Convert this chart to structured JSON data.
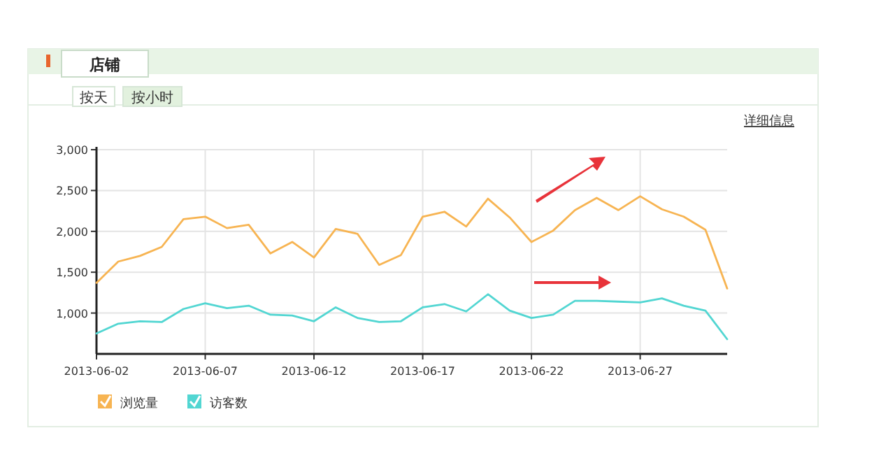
{
  "chart_data": {
    "type": "line",
    "title": "店铺",
    "annotations": [
      "按天",
      "按小时",
      "详细信息"
    ],
    "x": [
      "2013-06-02",
      "2013-06-03",
      "2013-06-04",
      "2013-06-05",
      "2013-06-06",
      "2013-06-07",
      "2013-06-08",
      "2013-06-09",
      "2013-06-10",
      "2013-06-11",
      "2013-06-12",
      "2013-06-13",
      "2013-06-14",
      "2013-06-15",
      "2013-06-16",
      "2013-06-17",
      "2013-06-18",
      "2013-06-19",
      "2013-06-20",
      "2013-06-21",
      "2013-06-22",
      "2013-06-23",
      "2013-06-24",
      "2013-06-25",
      "2013-06-26",
      "2013-06-27",
      "2013-06-28",
      "2013-06-29",
      "2013-06-30",
      "2013-07-01"
    ],
    "series": [
      {
        "name": "浏览量",
        "color": "#f7b452",
        "values": [
          1370,
          1630,
          1700,
          1810,
          2150,
          2180,
          2040,
          2080,
          1730,
          1870,
          1680,
          2030,
          1970,
          1590,
          1710,
          2180,
          2240,
          2060,
          2400,
          2170,
          1870,
          2010,
          2260,
          2410,
          2260,
          2430,
          2270,
          2180,
          2020,
          1300
        ]
      },
      {
        "name": "访客数",
        "color": "#52d6d2",
        "values": [
          750,
          870,
          900,
          890,
          1050,
          1120,
          1060,
          1090,
          980,
          970,
          900,
          1070,
          940,
          890,
          900,
          1070,
          1110,
          1020,
          1230,
          1030,
          940,
          980,
          1150,
          1150,
          1140,
          1130,
          1180,
          1090,
          1030,
          680
        ]
      }
    ],
    "xlim": [
      "2013-06-02",
      "2013-07-01"
    ],
    "xticks": [
      "2013-06-02",
      "2013-06-07",
      "2013-06-12",
      "2013-06-17",
      "2013-06-22",
      "2013-06-27"
    ],
    "ylim": [
      500,
      3000
    ],
    "yticks": [
      {
        "value": 1000,
        "label": "1,000"
      },
      {
        "value": 1500,
        "label": "1,500"
      },
      {
        "value": 2000,
        "label": "2,000"
      },
      {
        "value": 2500,
        "label": "2,500"
      },
      {
        "value": 3000,
        "label": "3,000"
      }
    ],
    "grid": true,
    "legend": "bottom",
    "marker": "none",
    "line_style": "solid"
  }
}
